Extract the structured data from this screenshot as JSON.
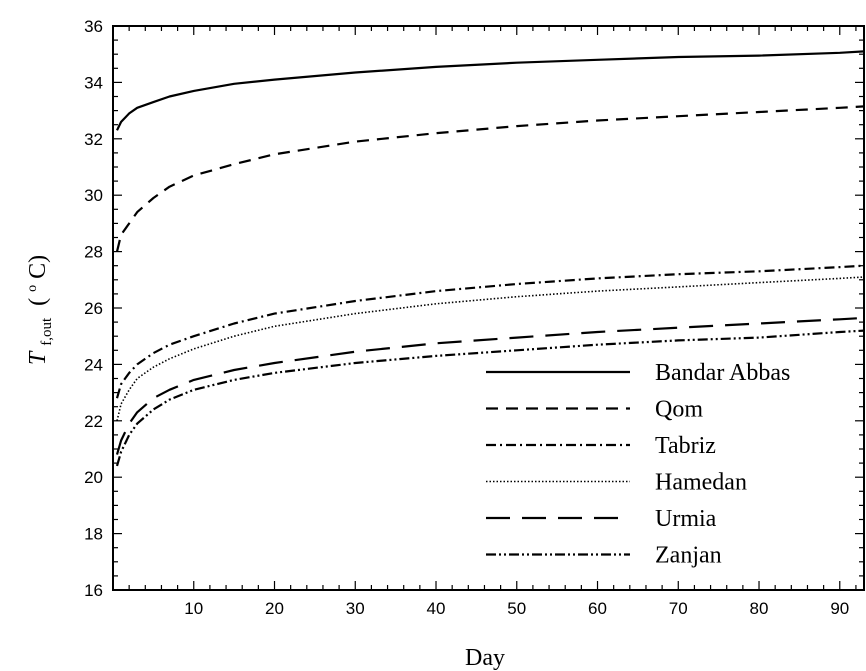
{
  "chart_data": {
    "type": "line",
    "xlabel": "Day",
    "ylabel": {
      "main": "T",
      "sub": "f,out",
      "unit_open": "(",
      "unit_sup": "o",
      "unit_close": "C)"
    },
    "xlim": [
      0,
      93
    ],
    "ylim": [
      16,
      36
    ],
    "x_ticks": [
      10,
      20,
      30,
      40,
      50,
      60,
      70,
      80,
      90
    ],
    "y_ticks": [
      16,
      18,
      20,
      22,
      24,
      26,
      28,
      30,
      32,
      34,
      36
    ],
    "grid": false,
    "legend_position": "bottom-right",
    "x": [
      0.5,
      1,
      2,
      3,
      5,
      7,
      10,
      15,
      20,
      30,
      40,
      50,
      60,
      70,
      80,
      90,
      93
    ],
    "series": [
      {
        "name": "Bandar Abbas",
        "style": "solid",
        "values": [
          32.3,
          32.6,
          32.9,
          33.1,
          33.3,
          33.5,
          33.7,
          33.95,
          34.1,
          34.35,
          34.55,
          34.7,
          34.8,
          34.9,
          34.95,
          35.05,
          35.1
        ]
      },
      {
        "name": "Qom",
        "style": "dashed",
        "values": [
          28.0,
          28.6,
          29.0,
          29.4,
          29.9,
          30.3,
          30.7,
          31.1,
          31.45,
          31.9,
          32.2,
          32.45,
          32.65,
          32.8,
          32.95,
          33.1,
          33.15
        ]
      },
      {
        "name": "Tabriz",
        "style": "dashdot",
        "values": [
          22.8,
          23.3,
          23.7,
          24.0,
          24.4,
          24.7,
          25.0,
          25.45,
          25.8,
          26.25,
          26.6,
          26.85,
          27.05,
          27.2,
          27.3,
          27.45,
          27.5
        ]
      },
      {
        "name": "Hamedan",
        "style": "dotted",
        "values": [
          22.0,
          22.6,
          23.1,
          23.5,
          23.9,
          24.2,
          24.55,
          25.0,
          25.35,
          25.8,
          26.15,
          26.4,
          26.6,
          26.75,
          26.9,
          27.05,
          27.1
        ]
      },
      {
        "name": "Urmia",
        "style": "longdash",
        "values": [
          20.8,
          21.3,
          21.9,
          22.3,
          22.8,
          23.1,
          23.45,
          23.8,
          24.05,
          24.45,
          24.75,
          24.95,
          25.15,
          25.3,
          25.45,
          25.6,
          25.65
        ]
      },
      {
        "name": "Zanjan",
        "style": "dashdotdot",
        "values": [
          20.4,
          20.9,
          21.5,
          21.9,
          22.4,
          22.75,
          23.1,
          23.45,
          23.7,
          24.05,
          24.3,
          24.5,
          24.7,
          24.85,
          24.95,
          25.15,
          25.2
        ]
      }
    ]
  }
}
